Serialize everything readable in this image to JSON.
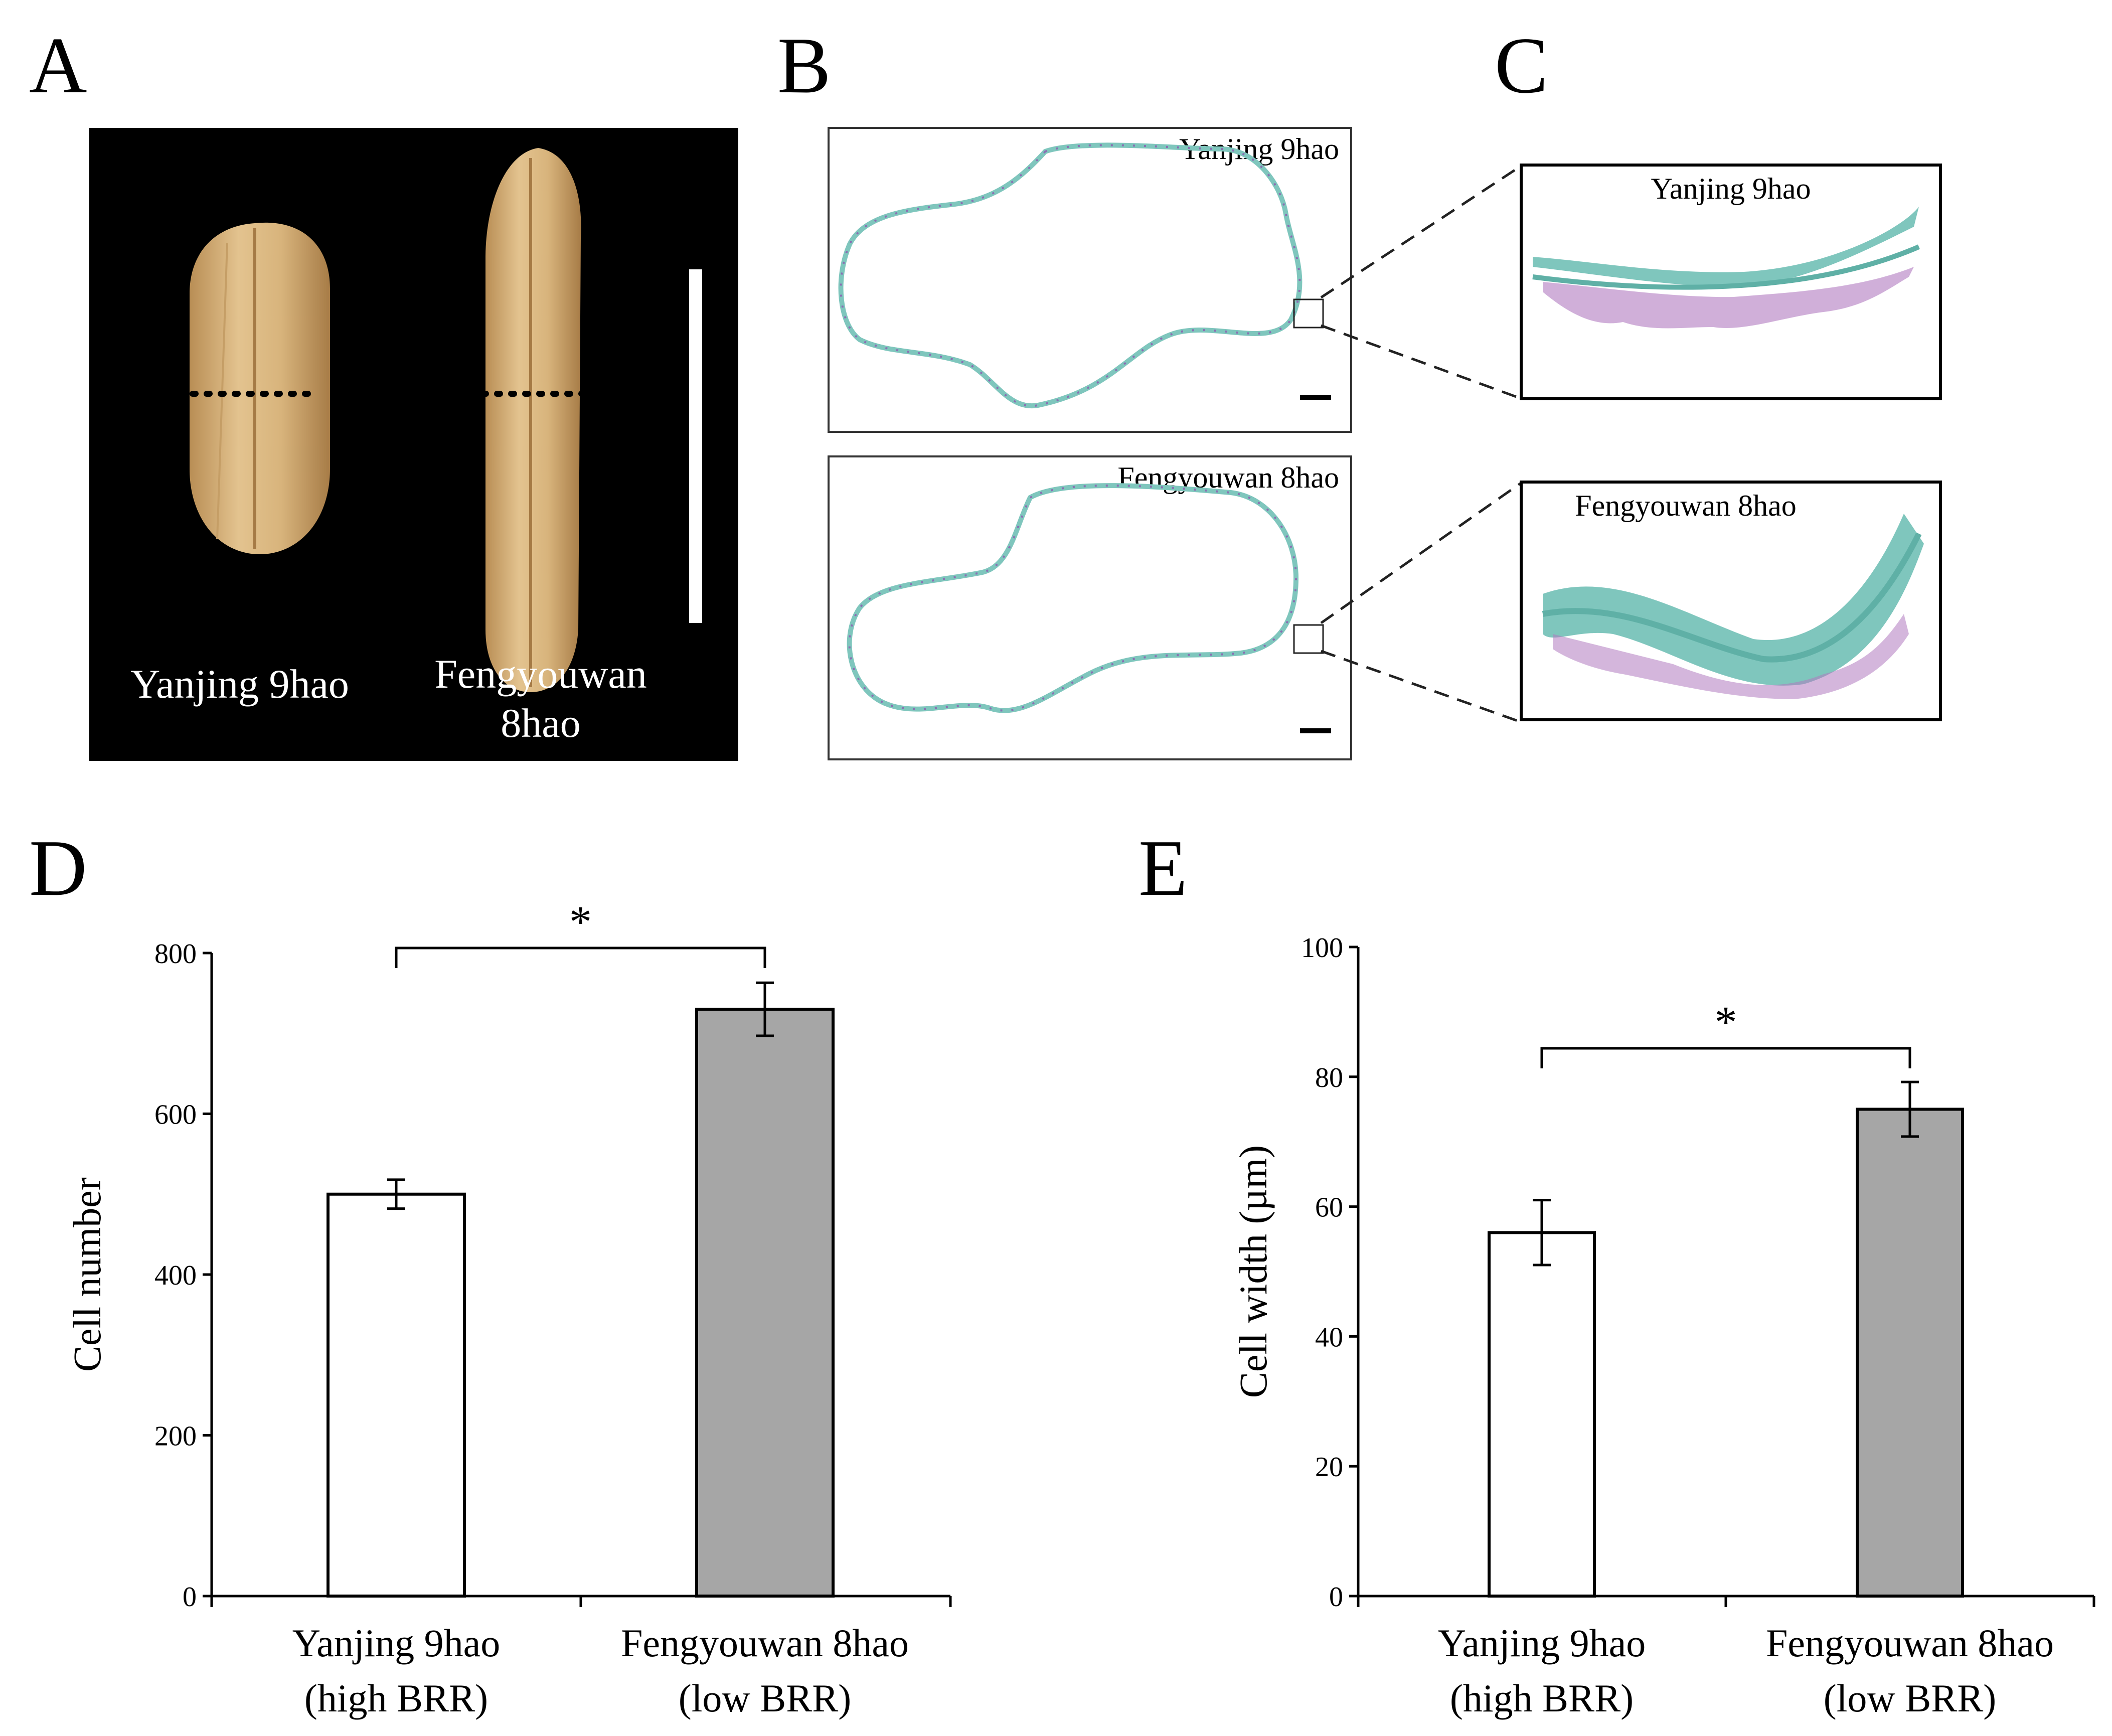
{
  "panels": {
    "a": {
      "letter": "A",
      "label_1": "Yanjing 9hao",
      "label_2_line1": "Fengyouwan",
      "label_2_line2": "8hao"
    },
    "b": {
      "letter": "B",
      "top_label": "Yanjing 9hao",
      "bottom_label": "Fengyouwan 8hao"
    },
    "c": {
      "letter": "C",
      "top_label": "Yanjing 9hao",
      "bottom_label": "Fengyouwan 8hao"
    },
    "d": {
      "letter": "D"
    },
    "e": {
      "letter": "E"
    }
  },
  "chart_data": [
    {
      "type": "bar",
      "panel": "D",
      "ylabel": "Cell number",
      "ylim": [
        0,
        800
      ],
      "yticks": [
        "0",
        "200",
        "400",
        "600",
        "800"
      ],
      "ytick_values": [
        0,
        200,
        400,
        600,
        800
      ],
      "categories": [
        {
          "line1": "Yanjing 9hao",
          "line2": "(high BRR)"
        },
        {
          "line1": "Fengyouwan 8hao",
          "line2": "(low BRR)"
        }
      ],
      "values": [
        500,
        730
      ],
      "errors": [
        18,
        33
      ],
      "colors": [
        "#ffffff",
        "#a6a6a6"
      ],
      "significance": "*"
    },
    {
      "type": "bar",
      "panel": "E",
      "ylabel": "Cell width (µm)",
      "ylim": [
        0,
        100
      ],
      "yticks": [
        "0",
        "20",
        "40",
        "60",
        "80",
        "100"
      ],
      "ytick_values": [
        0,
        20,
        40,
        60,
        80,
        100
      ],
      "categories": [
        {
          "line1": "Yanjing 9hao",
          "line2": "(high BRR)"
        },
        {
          "line1": "Fengyouwan 8hao",
          "line2": "(low BRR)"
        }
      ],
      "values": [
        56,
        75
      ],
      "errors": [
        5,
        4.2
      ],
      "colors": [
        "#ffffff",
        "#a6a6a6"
      ],
      "significance": "*"
    }
  ]
}
